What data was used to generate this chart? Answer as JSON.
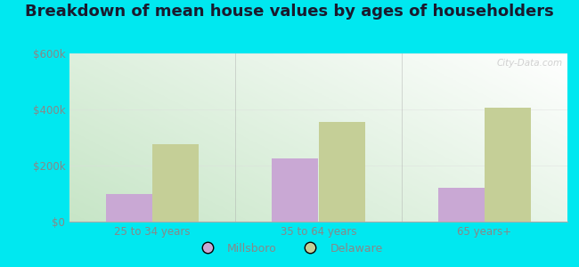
{
  "title": "Breakdown of mean house values by ages of householders",
  "categories": [
    "25 to 34 years",
    "35 to 64 years",
    "65 years+"
  ],
  "millsboro_values": [
    100000,
    225000,
    120000
  ],
  "delaware_values": [
    275000,
    355000,
    405000
  ],
  "ylim": [
    0,
    600000
  ],
  "ytick_labels": [
    "$0",
    "$200k",
    "$400k",
    "$600k"
  ],
  "ytick_values": [
    0,
    200000,
    400000,
    600000
  ],
  "bar_width": 0.28,
  "millsboro_color": "#c9a8d4",
  "delaware_color": "#c5cf97",
  "outer_bg": "#00e8f0",
  "title_fontsize": 13,
  "title_color": "#1a1a2e",
  "tick_color": "#888888",
  "legend_labels": [
    "Millsboro",
    "Delaware"
  ],
  "watermark": "City-Data.com",
  "plot_bg_left": "#c8e8c8",
  "plot_bg_right": "#f0f8f0",
  "divider_color": "#aaaaaa"
}
